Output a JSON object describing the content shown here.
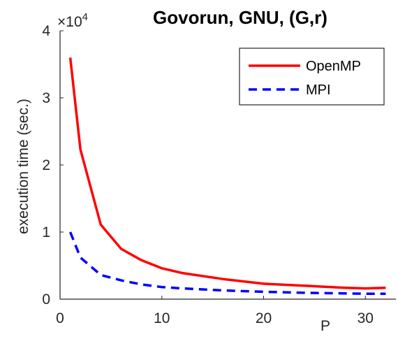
{
  "chart_data": {
    "type": "line",
    "title": "Govorun, GNU, (G,r)",
    "xlabel": "P",
    "ylabel": "execution time (sec.)",
    "xlim": [
      0,
      33
    ],
    "ylim": [
      0,
      40000
    ],
    "x_ticks": [
      0,
      10,
      20,
      30
    ],
    "y_ticks": [
      0,
      10000,
      20000,
      30000,
      40000
    ],
    "y_tick_labels": [
      "0",
      "1",
      "2",
      "3",
      "4"
    ],
    "x_tick_labels": [
      "0",
      "10",
      "20",
      "30"
    ],
    "y_multiplier": {
      "prefix": "×10",
      "exponent": "4"
    },
    "grid": false,
    "legend_position": "top-right",
    "series": [
      {
        "name": "OpenMP",
        "color": "#ff0000",
        "style": "solid",
        "x": [
          1,
          2,
          4,
          6,
          8,
          10,
          12,
          16,
          20,
          24,
          28,
          30,
          32
        ],
        "y": [
          36000,
          22300,
          11100,
          7500,
          5800,
          4600,
          3900,
          3000,
          2300,
          2000,
          1700,
          1600,
          1700
        ]
      },
      {
        "name": "MPI",
        "color": "#0000ff",
        "style": "dashed",
        "x": [
          1,
          2,
          4,
          6,
          8,
          10,
          12,
          16,
          20,
          24,
          28,
          30,
          32
        ],
        "y": [
          10000,
          6200,
          3600,
          2800,
          2200,
          1800,
          1600,
          1300,
          1100,
          950,
          850,
          800,
          800
        ]
      }
    ]
  }
}
